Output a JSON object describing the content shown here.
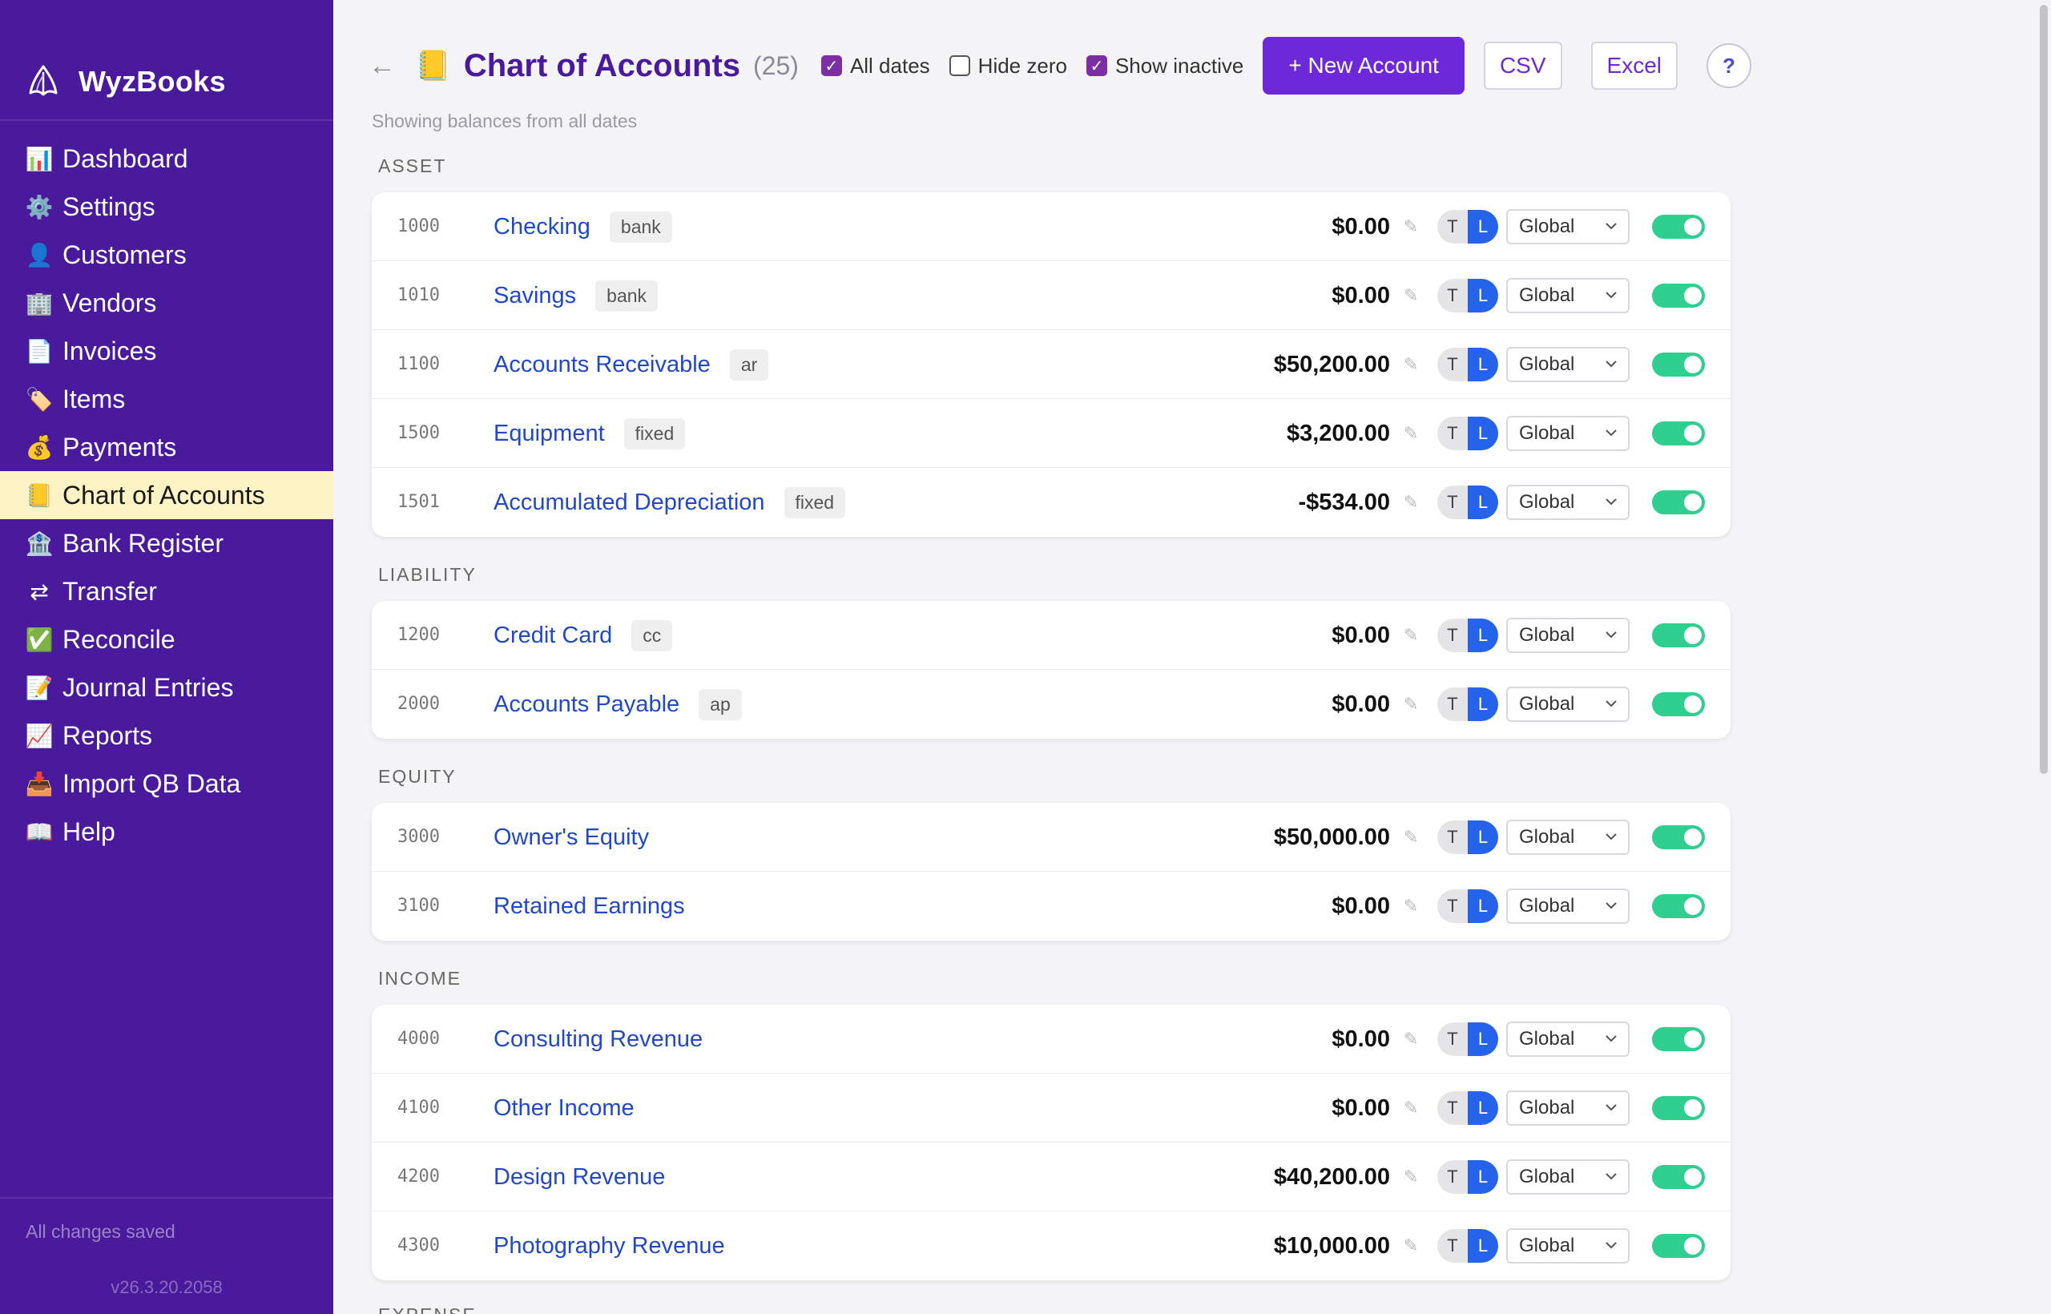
{
  "app": {
    "name": "WyzBooks",
    "save_status": "All changes saved",
    "version": "v26.3.20.2058"
  },
  "sidebar": {
    "items": [
      {
        "label": "Dashboard",
        "icon": "📊",
        "icon_name": "bar-chart-icon"
      },
      {
        "label": "Settings",
        "icon": "⚙️",
        "icon_name": "gear-icon"
      },
      {
        "label": "Customers",
        "icon": "👤",
        "icon_name": "user-icon"
      },
      {
        "label": "Vendors",
        "icon": "🏢",
        "icon_name": "building-icon"
      },
      {
        "label": "Invoices",
        "icon": "📄",
        "icon_name": "document-icon"
      },
      {
        "label": "Items",
        "icon": "🏷️",
        "icon_name": "tag-icon"
      },
      {
        "label": "Payments",
        "icon": "💰",
        "icon_name": "money-bag-icon"
      },
      {
        "label": "Chart of Accounts",
        "icon": "📒",
        "icon_name": "ledger-icon",
        "active": true
      },
      {
        "label": "Bank Register",
        "icon": "🏦",
        "icon_name": "bank-icon"
      },
      {
        "label": "Transfer",
        "icon": "⇄",
        "icon_name": "transfer-arrows-icon"
      },
      {
        "label": "Reconcile",
        "icon": "✅",
        "icon_name": "check-mark-icon"
      },
      {
        "label": "Journal Entries",
        "icon": "📝",
        "icon_name": "memo-icon"
      },
      {
        "label": "Reports",
        "icon": "📈",
        "icon_name": "line-chart-icon"
      },
      {
        "label": "Import QB Data",
        "icon": "📥",
        "icon_name": "inbox-tray-icon"
      },
      {
        "label": "Help",
        "icon": "📖",
        "icon_name": "book-icon"
      }
    ]
  },
  "header": {
    "back": "←",
    "title_icon": "📒",
    "title": "Chart of Accounts",
    "count": "(25)",
    "filters": [
      {
        "label": "All dates",
        "checked": true
      },
      {
        "label": "Hide zero",
        "checked": false
      },
      {
        "label": "Show inactive",
        "checked": true
      }
    ],
    "new_account": "+ New Account",
    "csv": "CSV",
    "excel": "Excel",
    "help": "?",
    "note": "Showing balances from all dates"
  },
  "row_controls": {
    "t": "T",
    "l": "L",
    "pencil": "✎"
  },
  "colors": {
    "sidebar": "#4a1a9c",
    "active_nav": "#fdf3c4",
    "accent": "#6d28d9",
    "link": "#2148c8",
    "toggle_on": "#2fcf8f",
    "l_button": "#2563eb"
  },
  "sections": [
    {
      "label": "ASSET",
      "accounts": [
        {
          "code": "1000",
          "name": "Checking",
          "tag": "bank",
          "balance": "$0.00",
          "scope": "Global",
          "active": true
        },
        {
          "code": "1010",
          "name": "Savings",
          "tag": "bank",
          "balance": "$0.00",
          "scope": "Global",
          "active": true
        },
        {
          "code": "1100",
          "name": "Accounts Receivable",
          "tag": "ar",
          "balance": "$50,200.00",
          "scope": "Global",
          "active": true
        },
        {
          "code": "1500",
          "name": "Equipment",
          "tag": "fixed",
          "balance": "$3,200.00",
          "scope": "Global",
          "active": true
        },
        {
          "code": "1501",
          "name": "Accumulated Depreciation",
          "tag": "fixed",
          "balance": "-$534.00",
          "scope": "Global",
          "active": true
        }
      ]
    },
    {
      "label": "LIABILITY",
      "accounts": [
        {
          "code": "1200",
          "name": "Credit Card",
          "tag": "cc",
          "balance": "$0.00",
          "scope": "Global",
          "active": true
        },
        {
          "code": "2000",
          "name": "Accounts Payable",
          "tag": "ap",
          "balance": "$0.00",
          "scope": "Global",
          "active": true
        }
      ]
    },
    {
      "label": "EQUITY",
      "accounts": [
        {
          "code": "3000",
          "name": "Owner's Equity",
          "tag": "",
          "balance": "$50,000.00",
          "scope": "Global",
          "active": true
        },
        {
          "code": "3100",
          "name": "Retained Earnings",
          "tag": "",
          "balance": "$0.00",
          "scope": "Global",
          "active": true
        }
      ]
    },
    {
      "label": "INCOME",
      "accounts": [
        {
          "code": "4000",
          "name": "Consulting Revenue",
          "tag": "",
          "balance": "$0.00",
          "scope": "Global",
          "active": true
        },
        {
          "code": "4100",
          "name": "Other Income",
          "tag": "",
          "balance": "$0.00",
          "scope": "Global",
          "active": true
        },
        {
          "code": "4200",
          "name": "Design Revenue",
          "tag": "",
          "balance": "$40,200.00",
          "scope": "Global",
          "active": true
        },
        {
          "code": "4300",
          "name": "Photography Revenue",
          "tag": "",
          "balance": "$10,000.00",
          "scope": "Global",
          "active": true
        }
      ]
    }
  ],
  "next_section_label": "EXPENSE"
}
